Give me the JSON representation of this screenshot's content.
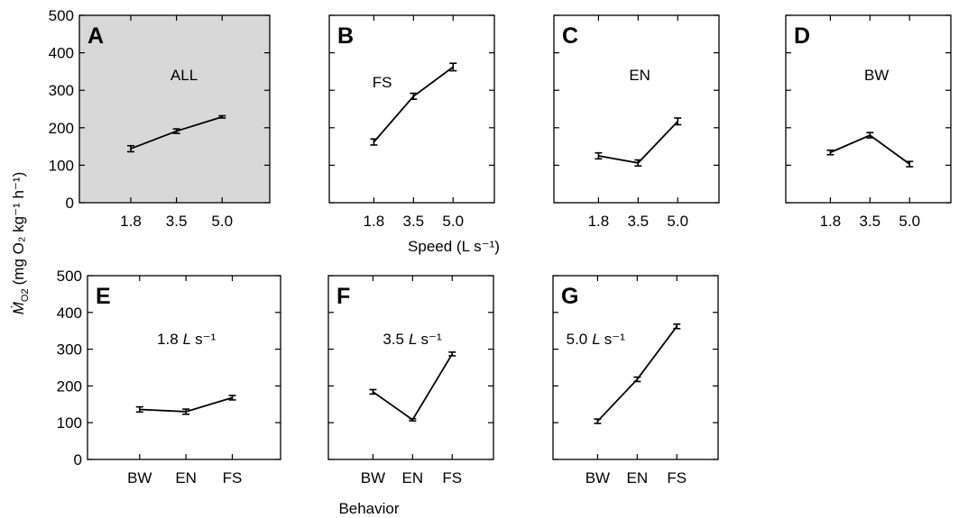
{
  "figure": {
    "ylabel_prefix": "Ṁ",
    "ylabel_sub": "O2",
    "ylabel_units": "(mg O₂ kg⁻¹ h⁻¹)",
    "xlabel_top": "Speed (L s⁻¹)",
    "xlabel_bottom": "Behavior"
  },
  "chart_data": [
    {
      "type": "line",
      "panel": "A",
      "label": "ALL",
      "shaded": true,
      "categories": [
        "1.8",
        "3.5",
        "5.0"
      ],
      "values": [
        144,
        191,
        229
      ],
      "errors": [
        8,
        6,
        3
      ],
      "ylim": [
        0,
        500
      ],
      "yticks": [
        0,
        100,
        200,
        300,
        400,
        500
      ],
      "xlabel": "Speed (L s⁻¹)"
    },
    {
      "type": "line",
      "panel": "B",
      "label": "FS",
      "shaded": false,
      "categories": [
        "1.8",
        "3.5",
        "5.0"
      ],
      "values": [
        162,
        284,
        362
      ],
      "errors": [
        8,
        8,
        10
      ],
      "ylim": [
        0,
        500
      ],
      "yticks": [
        0,
        100,
        200,
        300,
        400,
        500
      ],
      "xlabel": "Speed (L s⁻¹)"
    },
    {
      "type": "line",
      "panel": "C",
      "label": "EN",
      "shaded": false,
      "categories": [
        "1.8",
        "3.5",
        "5.0"
      ],
      "values": [
        125,
        106,
        217
      ],
      "errors": [
        8,
        8,
        9
      ],
      "ylim": [
        0,
        500
      ],
      "yticks": [
        0,
        100,
        200,
        300,
        400,
        500
      ],
      "xlabel": "Speed (L s⁻¹)"
    },
    {
      "type": "line",
      "panel": "D",
      "label": "BW",
      "shaded": false,
      "categories": [
        "1.8",
        "3.5",
        "5.0"
      ],
      "values": [
        134,
        180,
        103
      ],
      "errors": [
        6,
        7,
        7
      ],
      "ylim": [
        0,
        500
      ],
      "yticks": [
        0,
        100,
        200,
        300,
        400,
        500
      ],
      "xlabel": "Speed (L s⁻¹)"
    },
    {
      "type": "line",
      "panel": "E",
      "label_value": "1.8",
      "label_unit_l": "L",
      "label_unit_s": "s⁻¹",
      "shaded": false,
      "categories": [
        "BW",
        "EN",
        "FS"
      ],
      "values": [
        136,
        130,
        168
      ],
      "errors": [
        7,
        7,
        6
      ],
      "ylim": [
        0,
        500
      ],
      "yticks": [
        0,
        100,
        200,
        300,
        400,
        500
      ],
      "xlabel": "Behavior"
    },
    {
      "type": "line",
      "panel": "F",
      "label_value": "3.5",
      "label_unit_l": "L",
      "label_unit_s": "s⁻¹",
      "shaded": false,
      "categories": [
        "BW",
        "EN",
        "FS"
      ],
      "values": [
        184,
        108,
        287
      ],
      "errors": [
        6,
        3,
        5
      ],
      "ylim": [
        0,
        500
      ],
      "yticks": [
        0,
        100,
        200,
        300,
        400,
        500
      ],
      "xlabel": "Behavior"
    },
    {
      "type": "line",
      "panel": "G",
      "label_value": "5.0",
      "label_unit_l": "L",
      "label_unit_s": "s⁻¹",
      "shaded": false,
      "categories": [
        "BW",
        "EN",
        "FS"
      ],
      "values": [
        104,
        218,
        362
      ],
      "errors": [
        6,
        6,
        6
      ],
      "ylim": [
        0,
        500
      ],
      "yticks": [
        0,
        100,
        200,
        300,
        400,
        500
      ],
      "xlabel": "Behavior"
    }
  ]
}
